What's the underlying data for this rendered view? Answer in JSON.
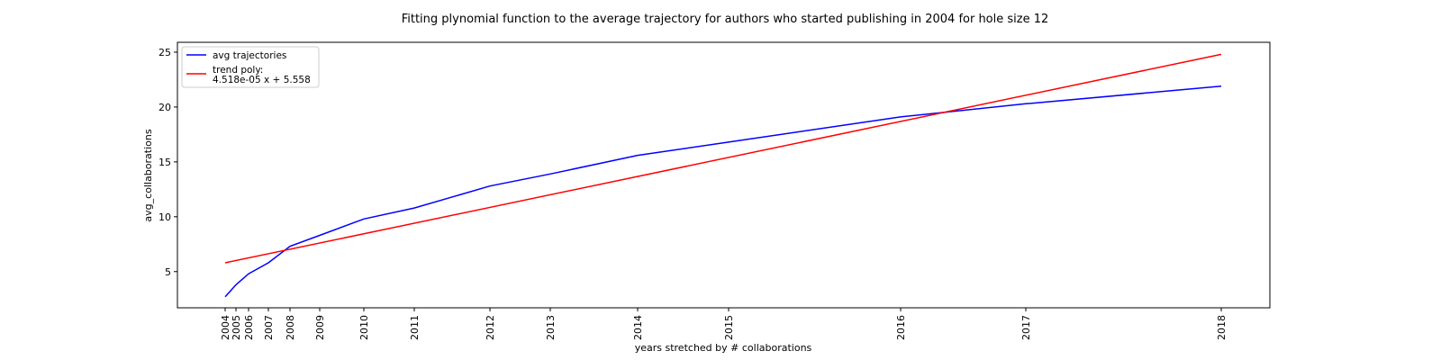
{
  "chart_data": {
    "type": "line",
    "title": "Fitting plynomial function to the average trajectory for authors who started publishing in 2004 for hole size 12",
    "xlabel": "years stretched by # collaborations",
    "ylabel": "avg_collaborations",
    "ylim": [
      1.7,
      25.9
    ],
    "grid": false,
    "legend_placement": "top-left",
    "x_tick_labels": [
      "2004",
      "2005",
      "2006",
      "2007",
      "2008",
      "2009",
      "2010",
      "2011",
      "2012",
      "2013",
      "2014",
      "2015",
      "2016",
      "2017",
      "2018"
    ],
    "y_ticks": [
      5,
      10,
      15,
      20,
      25
    ],
    "series": [
      {
        "name": "avg trajectories",
        "color": "#0000ff",
        "points": [
          {
            "x": 2004,
            "y": 2.7
          },
          {
            "x": 2005,
            "y": 3.8
          },
          {
            "x": 2006,
            "y": 4.8
          },
          {
            "x": 2007,
            "y": 5.8
          },
          {
            "x": 2008,
            "y": 7.3
          },
          {
            "x": 2009,
            "y": 8.3
          },
          {
            "x": 2010,
            "y": 9.8
          },
          {
            "x": 2011,
            "y": 10.8
          },
          {
            "x": 2012,
            "y": 12.8
          },
          {
            "x": 2013,
            "y": 13.9
          },
          {
            "x": 2014,
            "y": 15.6
          },
          {
            "x": 2015,
            "y": 16.8
          },
          {
            "x": 2016,
            "y": 19.1
          },
          {
            "x": 2017,
            "y": 20.3
          },
          {
            "x": 2018,
            "y": 21.9
          }
        ]
      },
      {
        "name": "trend poly:\n4.518e-05 x + 5.558",
        "color": "#ff0000",
        "points": [
          {
            "x": 2004,
            "y": 5.8
          },
          {
            "x": 2018,
            "y": 24.8
          }
        ]
      }
    ]
  }
}
